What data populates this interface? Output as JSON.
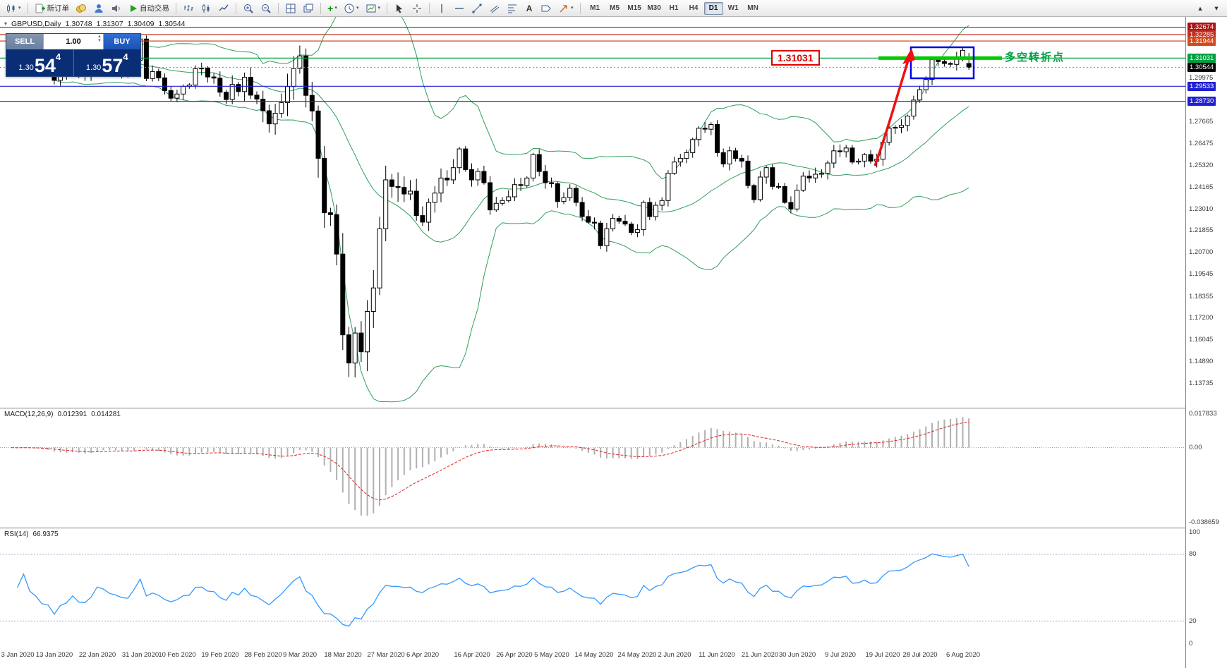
{
  "toolbar": {
    "new_order_label": "新订单",
    "autotrading_label": "自动交易",
    "timeframes": [
      "M1",
      "M5",
      "M15",
      "M30",
      "H1",
      "H4",
      "D1",
      "W1",
      "MN"
    ],
    "active_timeframe": "D1",
    "text_tool_label": "A"
  },
  "chart_header": {
    "symbol_title": "GBPUSD,Daily",
    "open": "1.30748",
    "high": "1.31307",
    "low": "1.30409",
    "close": "1.30544"
  },
  "trade_widget": {
    "sell_label": "SELL",
    "buy_label": "BUY",
    "volume": "1.00",
    "sell_price": {
      "prefix": "1.30",
      "big": "54",
      "sup": "4"
    },
    "buy_price": {
      "prefix": "1.30",
      "big": "57",
      "sup": "4"
    }
  },
  "annotations": {
    "price_callout": "1.31031",
    "pivot_label": "多空转折点"
  },
  "chart_data": {
    "type": "candlestick",
    "symbol": "GBPUSD",
    "period": "Daily",
    "last_candle": {
      "o": 1.30748,
      "h": 1.31307,
      "l": 1.30409,
      "c": 1.30544
    },
    "closes": [
      1.3135,
      1.3085,
      1.3167,
      1.3124,
      1.3105,
      1.3068,
      1.306,
      1.2985,
      1.3022,
      1.3035,
      1.3075,
      1.3013,
      1.3008,
      1.3048,
      1.3142,
      1.312,
      1.3073,
      1.3055,
      1.3025,
      1.3018,
      1.3092,
      1.3205,
      1.2995,
      1.3032,
      1.2998,
      1.293,
      1.289,
      1.2912,
      1.2953,
      1.296,
      1.3047,
      1.305,
      1.3003,
      1.2997,
      1.2922,
      1.2883,
      1.2963,
      1.2925,
      1.3001,
      1.2906,
      1.2885,
      1.2823,
      1.2753,
      1.281,
      1.2866,
      1.2952,
      1.3048,
      1.3115,
      1.2905,
      1.2822,
      1.257,
      1.228,
      1.227,
      1.206,
      1.163,
      1.148,
      1.164,
      1.154,
      1.1755,
      1.188,
      1.2195,
      1.2455,
      1.242,
      1.2415,
      1.238,
      1.2395,
      1.2265,
      1.223,
      1.2335,
      1.2385,
      1.2465,
      1.2455,
      1.252,
      1.262,
      1.251,
      1.2455,
      1.25,
      1.244,
      1.2295,
      1.233,
      1.2345,
      1.2365,
      1.243,
      1.2425,
      1.2465,
      1.259,
      1.25,
      1.244,
      1.2435,
      1.234,
      1.236,
      1.241,
      1.2335,
      1.226,
      1.223,
      1.2225,
      1.2105,
      1.2195,
      1.225,
      1.2235,
      1.222,
      1.2175,
      1.219,
      1.2335,
      1.226,
      1.232,
      1.2345,
      1.249,
      1.255,
      1.257,
      1.26,
      1.267,
      1.273,
      1.2725,
      1.275,
      1.26,
      1.254,
      1.261,
      1.257,
      1.2555,
      1.2425,
      1.235,
      1.247,
      1.252,
      1.242,
      1.242,
      1.2335,
      1.23,
      1.24,
      1.2475,
      1.2465,
      1.2485,
      1.249,
      1.2545,
      1.261,
      1.2605,
      1.2625,
      1.255,
      1.2555,
      1.259,
      1.2555,
      1.2565,
      1.2655,
      1.273,
      1.2735,
      1.2745,
      1.2795,
      1.288,
      1.2935,
      1.299,
      1.3095,
      1.3085,
      1.3075,
      1.307,
      1.311,
      1.3145,
      1.30544
    ],
    "date_labels": [
      "3 Jan 2020",
      "13 Jan 2020",
      "22 Jan 2020",
      "31 Jan 2020",
      "10 Feb 2020",
      "19 Feb 2020",
      "28 Feb 2020",
      "9 Mar 2020",
      "18 Mar 2020",
      "27 Mar 2020",
      "6 Apr 2020",
      "16 Apr 2020",
      "26 Apr 2020",
      "5 May 2020",
      "14 May 2020",
      "24 May 2020",
      "2 Jun 2020",
      "11 Jun 2020",
      "21 Jun 2020",
      "30 Jun 2020",
      "9 Jul 2020",
      "19 Jul 2020",
      "28 Jul 2020",
      "6 Aug 2020"
    ],
    "date_indices": [
      1,
      7,
      14,
      21,
      27,
      34,
      41,
      47,
      54,
      61,
      67,
      75,
      82,
      88,
      95,
      102,
      108,
      115,
      122,
      128,
      135,
      142,
      148,
      155
    ],
    "y_axis_ticks": [
      "1.29975",
      "1.27665",
      "1.26475",
      "1.25320",
      "1.24165",
      "1.23010",
      "1.21855",
      "1.20700",
      "1.19545",
      "1.18355",
      "1.17200",
      "1.16045",
      "1.14890",
      "1.13735"
    ],
    "price_lines": [
      {
        "value": 1.32674,
        "label": "1.32674",
        "color": "#a81414"
      },
      {
        "value": 1.32285,
        "label": "1.32285",
        "color": "#c03020"
      },
      {
        "value": 1.31944,
        "label": "1.31944",
        "color": "#d2491e"
      },
      {
        "value": 1.31031,
        "label": "1.31031",
        "color": "#00a040"
      },
      {
        "value": 1.29533,
        "label": "1.29533",
        "color": "#2020d0"
      },
      {
        "value": 1.2873,
        "label": "1.28730",
        "color": "#2020d0"
      }
    ],
    "current_price": {
      "value": 1.30544,
      "label": "1.30544"
    },
    "bollinger": {
      "period": 20,
      "deviation": 2,
      "color": "#2e9e5b"
    },
    "pivot_line": {
      "value": 1.31031,
      "color": "#00cc00"
    },
    "highlight_box": {
      "color": "#0000ee"
    },
    "trend_arrow": {
      "color": "#ee1111"
    },
    "macd": {
      "label": "MACD(12,26,9)",
      "value_main": "0.012391",
      "value_signal": "0.014281",
      "axis_max": "0.017833",
      "axis_zero": "0.00",
      "axis_min": "-0.038659",
      "range": [
        -0.038659,
        0.017833
      ]
    },
    "rsi": {
      "label": "RSI(14)",
      "value": "66.9375",
      "axis": [
        100,
        80,
        20,
        0
      ],
      "levels": [
        80,
        20
      ]
    }
  }
}
